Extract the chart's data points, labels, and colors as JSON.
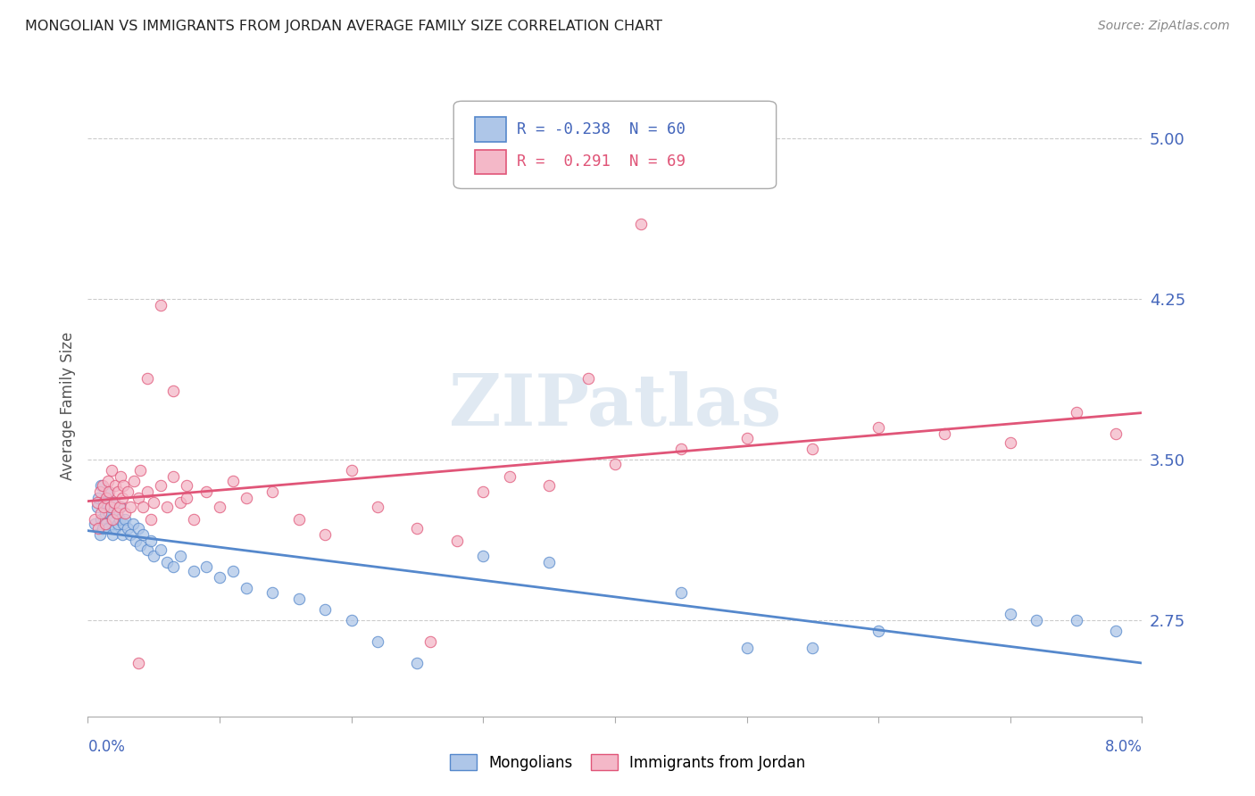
{
  "title": "MONGOLIAN VS IMMIGRANTS FROM JORDAN AVERAGE FAMILY SIZE CORRELATION CHART",
  "source": "Source: ZipAtlas.com",
  "ylabel": "Average Family Size",
  "xlim": [
    0.0,
    8.0
  ],
  "ylim": [
    2.3,
    5.2
  ],
  "yticks_right": [
    2.75,
    3.5,
    4.25,
    5.0
  ],
  "yticks_right_labels": [
    "2.75",
    "3.50",
    "4.25",
    "5.00"
  ],
  "mongolians_color": "#aec6e8",
  "jordan_color": "#f4b8c8",
  "mongolians_line_color": "#5588cc",
  "jordan_line_color": "#e05578",
  "legend_R1": "-0.238",
  "legend_N1": "60",
  "legend_R2": " 0.291",
  "legend_N2": "69",
  "axis_label_color": "#4466bb",
  "watermark": "ZIPatlas",
  "mongolians_x": [
    0.05,
    0.07,
    0.08,
    0.09,
    0.1,
    0.1,
    0.11,
    0.12,
    0.13,
    0.14,
    0.15,
    0.15,
    0.16,
    0.17,
    0.18,
    0.19,
    0.2,
    0.21,
    0.22,
    0.23,
    0.24,
    0.25,
    0.26,
    0.27,
    0.28,
    0.3,
    0.32,
    0.34,
    0.36,
    0.38,
    0.4,
    0.42,
    0.45,
    0.48,
    0.5,
    0.55,
    0.6,
    0.65,
    0.7,
    0.8,
    0.9,
    1.0,
    1.1,
    1.2,
    1.4,
    1.6,
    1.8,
    2.0,
    2.2,
    2.5,
    3.0,
    3.5,
    4.5,
    5.0,
    5.5,
    6.0,
    7.0,
    7.2,
    7.5,
    7.8
  ],
  "mongolians_y": [
    3.2,
    3.28,
    3.32,
    3.15,
    3.38,
    3.22,
    3.18,
    3.3,
    3.25,
    3.2,
    3.35,
    3.18,
    3.25,
    3.28,
    3.22,
    3.15,
    3.3,
    3.18,
    3.25,
    3.2,
    3.22,
    3.28,
    3.15,
    3.2,
    3.22,
    3.18,
    3.15,
    3.2,
    3.12,
    3.18,
    3.1,
    3.15,
    3.08,
    3.12,
    3.05,
    3.08,
    3.02,
    3.0,
    3.05,
    2.98,
    3.0,
    2.95,
    2.98,
    2.9,
    2.88,
    2.85,
    2.8,
    2.75,
    2.65,
    2.55,
    3.05,
    3.02,
    2.88,
    2.62,
    2.62,
    2.7,
    2.78,
    2.75,
    2.75,
    2.7
  ],
  "jordan_x": [
    0.05,
    0.07,
    0.08,
    0.09,
    0.1,
    0.11,
    0.12,
    0.13,
    0.14,
    0.15,
    0.16,
    0.17,
    0.18,
    0.19,
    0.2,
    0.21,
    0.22,
    0.23,
    0.24,
    0.25,
    0.26,
    0.27,
    0.28,
    0.3,
    0.32,
    0.35,
    0.38,
    0.4,
    0.42,
    0.45,
    0.48,
    0.5,
    0.55,
    0.6,
    0.65,
    0.7,
    0.75,
    0.8,
    0.9,
    1.0,
    1.1,
    1.2,
    1.4,
    1.6,
    1.8,
    2.0,
    2.2,
    2.5,
    2.8,
    3.0,
    3.2,
    3.5,
    4.0,
    4.5,
    5.0,
    5.5,
    6.0,
    6.5,
    7.0,
    7.5,
    7.8,
    4.2,
    3.8,
    2.6,
    0.45,
    0.38,
    0.55,
    0.65,
    0.75
  ],
  "jordan_y": [
    3.22,
    3.3,
    3.18,
    3.35,
    3.25,
    3.38,
    3.28,
    3.2,
    3.32,
    3.4,
    3.35,
    3.28,
    3.45,
    3.22,
    3.3,
    3.38,
    3.25,
    3.35,
    3.28,
    3.42,
    3.32,
    3.38,
    3.25,
    3.35,
    3.28,
    3.4,
    3.32,
    3.45,
    3.28,
    3.35,
    3.22,
    3.3,
    3.38,
    3.28,
    3.42,
    3.3,
    3.38,
    3.22,
    3.35,
    3.28,
    3.4,
    3.32,
    3.35,
    3.22,
    3.15,
    3.45,
    3.28,
    3.18,
    3.12,
    3.35,
    3.42,
    3.38,
    3.48,
    3.55,
    3.6,
    3.55,
    3.65,
    3.62,
    3.58,
    3.72,
    3.62,
    4.6,
    3.88,
    2.65,
    3.88,
    2.55,
    4.22,
    3.82,
    3.32
  ]
}
